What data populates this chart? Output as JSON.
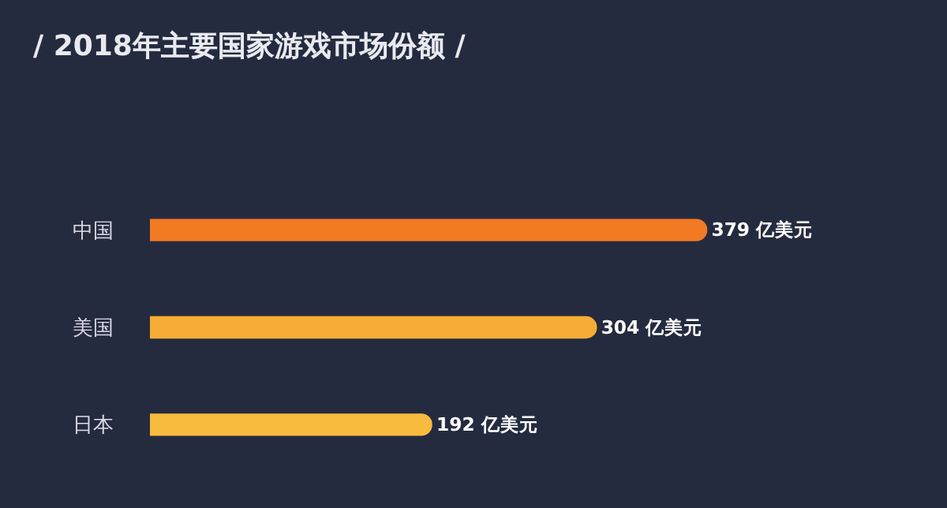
{
  "chart_data": {
    "type": "bar",
    "orientation": "horizontal",
    "title": "/ 2018年主要国家游戏市场份额 /",
    "categories": [
      "中国",
      "美国",
      "日本"
    ],
    "values": [
      379,
      304,
      192
    ],
    "colors": [
      "#f27a22",
      "#f7ad35",
      "#f8bb3e"
    ],
    "value_labels": [
      "379 亿美元",
      "304 亿美元",
      "192 亿美元"
    ],
    "legend": false
  }
}
